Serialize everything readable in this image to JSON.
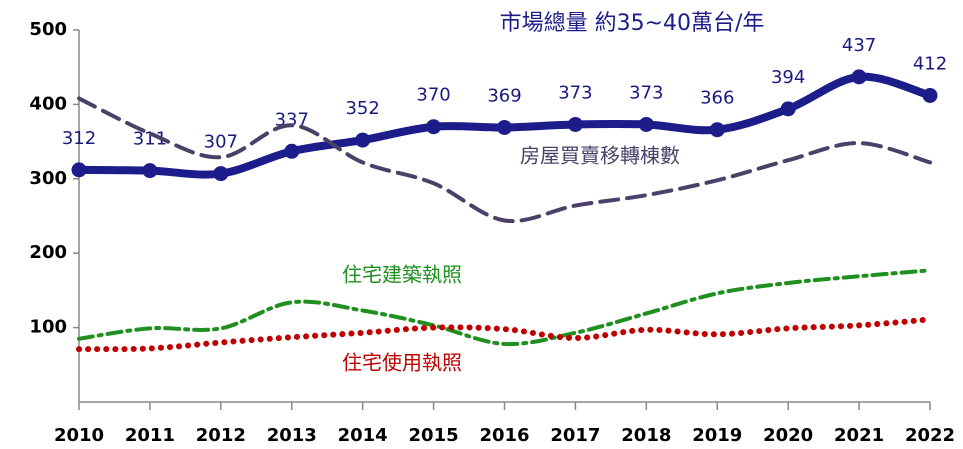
{
  "chart_data": {
    "type": "line",
    "annotation": "市場總量 約35~40萬台/年",
    "categories": [
      "2010",
      "2011",
      "2012",
      "2013",
      "2014",
      "2015",
      "2016",
      "2017",
      "2018",
      "2019",
      "2020",
      "2021",
      "2022"
    ],
    "ylim": [
      0,
      500
    ],
    "yticks": [
      100,
      200,
      300,
      400,
      500
    ],
    "grid": false,
    "series": [
      {
        "name": "市場總量",
        "color": "#1c1c8a",
        "style": "solid",
        "markers": true,
        "data_labels": true,
        "values": [
          312,
          311,
          307,
          337,
          352,
          370,
          369,
          373,
          373,
          366,
          394,
          437,
          412
        ]
      },
      {
        "name": "房屋買賣移轉棟數",
        "color": "#4b4068",
        "style": "dashed",
        "values": [
          408,
          361,
          329,
          372,
          322,
          294,
          244,
          264,
          278,
          298,
          325,
          348,
          322
        ]
      },
      {
        "name": "住宅建築執照",
        "color": "#1f8f1f",
        "style": "dashdot",
        "values": [
          85,
          99,
          99,
          134,
          123,
          103,
          78,
          93,
          119,
          146,
          160,
          169,
          177
        ]
      },
      {
        "name": "住宅使用執照",
        "color": "#c00000",
        "style": "dotted",
        "values": [
          71,
          72,
          80,
          87,
          93,
          100,
          98,
          86,
          97,
          91,
          99,
          103,
          111
        ]
      }
    ]
  }
}
